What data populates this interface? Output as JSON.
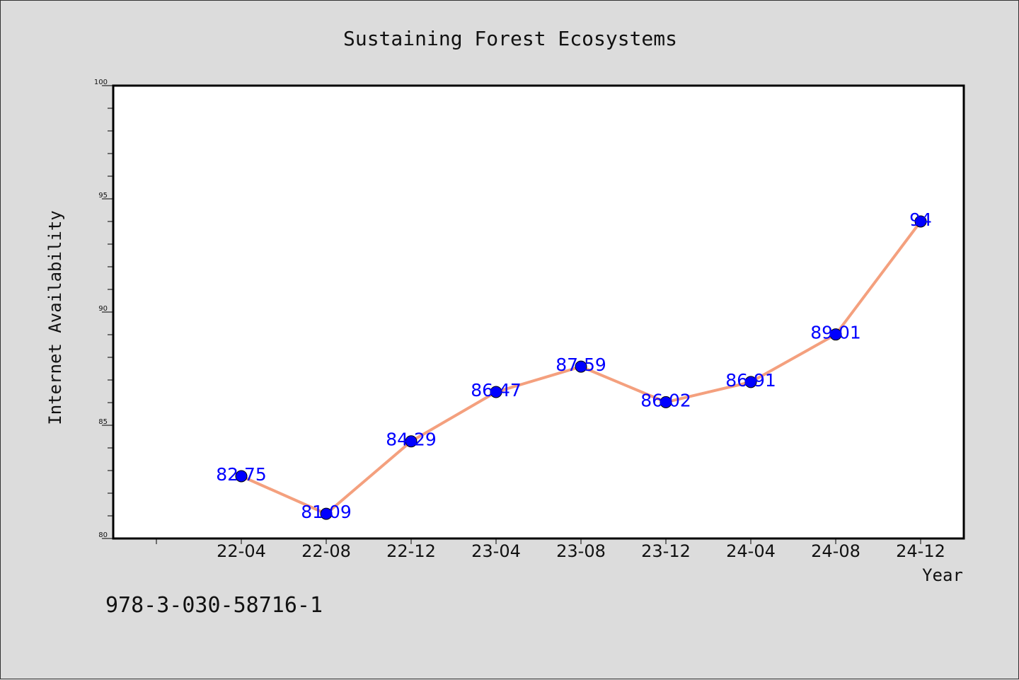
{
  "chart_data": {
    "type": "line",
    "title": "Sustaining Forest Ecosystems",
    "xlabel": "Year",
    "ylabel": "Internet Availability",
    "categories": [
      "22-04",
      "22-08",
      "22-12",
      "23-04",
      "23-08",
      "23-12",
      "24-04",
      "24-08",
      "24-12"
    ],
    "values": [
      82.75,
      81.09,
      84.29,
      86.47,
      87.59,
      86.02,
      86.91,
      89.01,
      94
    ],
    "data_labels": [
      "82.75",
      "81.09",
      "84.29",
      "86.47",
      "87.59",
      "86.02",
      "86.91",
      "89.01",
      "94"
    ],
    "ylim": [
      80,
      100
    ],
    "yticks": [
      "80",
      "85",
      "90",
      "95",
      "100"
    ],
    "grid": false,
    "line_color": "#f4a07e",
    "marker_color": "#0000ff",
    "label_color": "#0000ff"
  },
  "footer": {
    "isbn": "978-3-030-58716-1"
  }
}
